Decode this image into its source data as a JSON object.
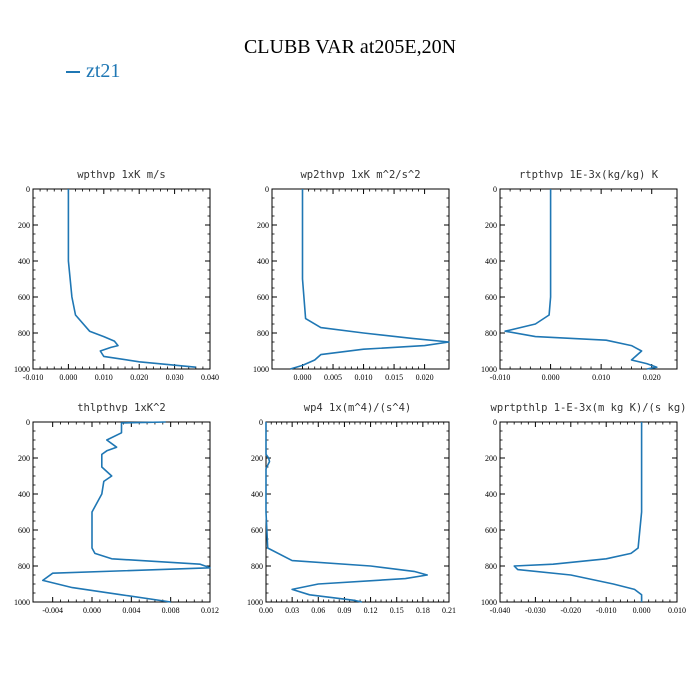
{
  "title": "CLUBB VAR at205E,20N",
  "legend": {
    "label": "zt21",
    "color": "#1f77b4"
  },
  "chart_data": [
    {
      "type": "line",
      "title": "wpthvp  1xK m/s",
      "xlim": [
        -0.01,
        0.04
      ],
      "xticks": [
        -0.01,
        0.0,
        0.01,
        0.02,
        0.03,
        0.04
      ],
      "xtick_labels": [
        "-0.010",
        "0.000",
        "0.010",
        "0.020",
        "0.030",
        "0.040"
      ],
      "ylim": [
        1000,
        0
      ],
      "yticks": [
        0,
        200,
        400,
        600,
        800,
        1000
      ],
      "series": [
        {
          "x": [
            0.0,
            0.0,
            0.0,
            0.0,
            0.0,
            0.0,
            0.0,
            0.001,
            0.002,
            0.006,
            0.01,
            0.013,
            0.014,
            0.012,
            0.009,
            0.01,
            0.02,
            0.036
          ],
          "y": [
            0,
            100,
            140,
            180,
            250,
            300,
            400,
            600,
            700,
            790,
            820,
            845,
            870,
            880,
            900,
            930,
            960,
            990
          ]
        }
      ]
    },
    {
      "type": "line",
      "title": "wp2thvp  1xK m^2/s^2",
      "xlim": [
        -0.005,
        0.024
      ],
      "xticks": [
        0.0,
        0.005,
        0.01,
        0.015,
        0.02
      ],
      "xtick_labels": [
        "0.000",
        "0.005",
        "0.010",
        "0.015",
        "0.020"
      ],
      "ylim": [
        1000,
        0
      ],
      "yticks": [
        0,
        200,
        400,
        600,
        800,
        1000
      ],
      "series": [
        {
          "x": [
            0.0,
            0.0,
            0.0,
            0.0,
            0.0,
            0.0,
            0.0005,
            0.003,
            0.01,
            0.018,
            0.024,
            0.02,
            0.01,
            0.003,
            0.002,
            0.0,
            -0.002
          ],
          "y": [
            0,
            100,
            200,
            240,
            300,
            500,
            720,
            770,
            800,
            830,
            850,
            870,
            890,
            920,
            950,
            980,
            1000
          ]
        }
      ]
    },
    {
      "type": "line",
      "title": "rtpthvp  1E-3x(kg/kg) K",
      "xlim": [
        -0.01,
        0.025
      ],
      "xticks": [
        -0.01,
        0.0,
        0.01,
        0.02
      ],
      "xtick_labels": [
        "-0.010",
        "0.000",
        "0.010",
        "0.020"
      ],
      "ylim": [
        1000,
        0
      ],
      "yticks": [
        0,
        200,
        400,
        600,
        800,
        1000
      ],
      "series": [
        {
          "x": [
            0.0,
            0.0,
            0.0,
            0.0,
            -0.0003,
            -0.003,
            -0.009,
            -0.003,
            0.011,
            0.016,
            0.018,
            0.016,
            0.019,
            0.021,
            0.019
          ],
          "y": [
            0,
            200,
            400,
            600,
            700,
            750,
            790,
            820,
            840,
            870,
            900,
            950,
            970,
            990,
            1000
          ]
        }
      ]
    },
    {
      "type": "line",
      "title": "thlpthvp  1xK^2",
      "xlim": [
        -0.006,
        0.012
      ],
      "xticks": [
        -0.004,
        0.0,
        0.004,
        0.008,
        0.012
      ],
      "xtick_labels": [
        "-0.004",
        "0.000",
        "0.004",
        "0.008",
        "0.012"
      ],
      "ylim": [
        1000,
        0
      ],
      "yticks": [
        0,
        200,
        400,
        600,
        800,
        1000
      ],
      "series": [
        {
          "x": [
            0.0075,
            0.003,
            0.003,
            0.0015,
            0.0025,
            0.0015,
            0.001,
            0.001,
            0.002,
            0.0012,
            0.001,
            0.0,
            0.0,
            0.0,
            0.0,
            0.0003,
            0.002,
            0.011,
            0.012,
            -0.004,
            -0.005,
            -0.002,
            0.003,
            0.008
          ],
          "y": [
            0,
            5,
            60,
            100,
            140,
            160,
            180,
            250,
            300,
            330,
            400,
            500,
            600,
            650,
            700,
            730,
            760,
            790,
            810,
            840,
            880,
            920,
            960,
            1000
          ]
        }
      ]
    },
    {
      "type": "line",
      "title": "wp4  1x(m^4)/(s^4)",
      "xlim": [
        0.0,
        0.21
      ],
      "xticks": [
        0.0,
        0.03,
        0.06,
        0.09,
        0.12,
        0.15,
        0.18,
        0.21
      ],
      "xtick_labels": [
        "0.00",
        "0.03",
        "0.06",
        "0.09",
        "0.12",
        "0.15",
        "0.18",
        "0.21"
      ],
      "ylim": [
        1000,
        0
      ],
      "yticks": [
        0,
        200,
        400,
        600,
        800,
        1000
      ],
      "series": [
        {
          "x": [
            0.0,
            0.0,
            0.0,
            0.003,
            0.004,
            0.002,
            0.0,
            0.0,
            0.0,
            0.002,
            0.03,
            0.12,
            0.17,
            0.185,
            0.16,
            0.06,
            0.03,
            0.05,
            0.1,
            0.11
          ],
          "y": [
            0,
            100,
            180,
            200,
            220,
            240,
            260,
            300,
            500,
            700,
            770,
            800,
            830,
            850,
            870,
            900,
            930,
            960,
            990,
            1000
          ]
        }
      ]
    },
    {
      "type": "line",
      "title": "wprtpthlp  1-E-3x(m kg K)/(s kg)",
      "xlim": [
        -0.04,
        0.01
      ],
      "xticks": [
        -0.04,
        -0.03,
        -0.02,
        -0.01,
        0.0,
        0.01
      ],
      "xtick_labels": [
        "-0.040",
        "-0.030",
        "-0.020",
        "-0.010",
        "0.000",
        "0.010"
      ],
      "ylim": [
        1000,
        0
      ],
      "yticks": [
        0,
        200,
        400,
        600,
        800,
        1000
      ],
      "series": [
        {
          "x": [
            0.0,
            0.0,
            0.0,
            -0.001,
            -0.003,
            -0.01,
            -0.025,
            -0.036,
            -0.035,
            -0.02,
            -0.008,
            -0.002,
            0.0,
            0.0
          ],
          "y": [
            0,
            200,
            500,
            700,
            730,
            760,
            790,
            800,
            820,
            850,
            900,
            930,
            960,
            1000
          ]
        }
      ]
    }
  ]
}
